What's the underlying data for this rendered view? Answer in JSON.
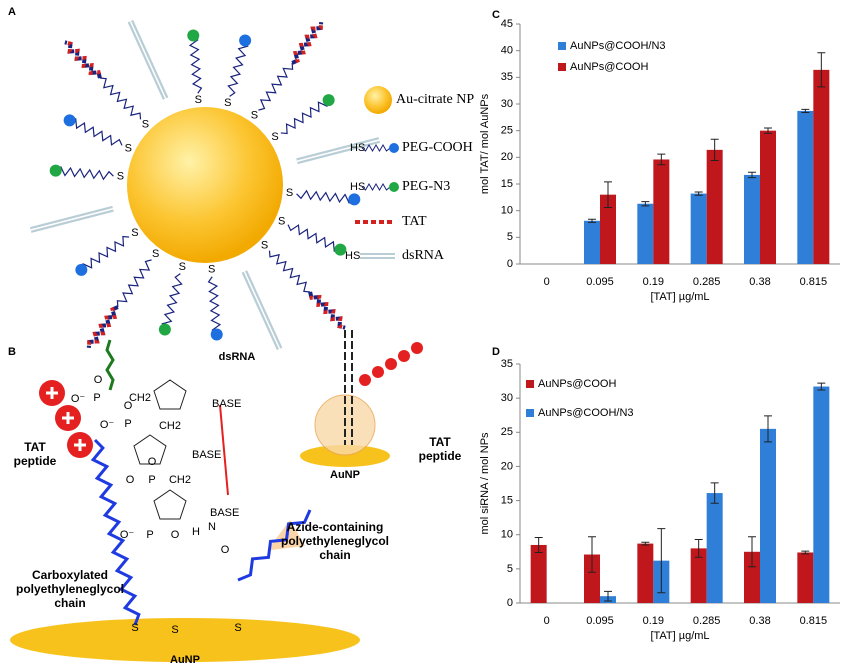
{
  "panel_labels": [
    "A",
    "B",
    "C",
    "D"
  ],
  "panel_a": {
    "legend": [
      "Au-citrate NP",
      "PEG-COOH",
      "PEG-N3",
      "TAT",
      "dsRNA"
    ],
    "hs": "HS",
    "thiol": "S"
  },
  "panel_b": {
    "dsrna": "dsRNA",
    "tat_left": "TAT peptide",
    "tat_right": "TAT peptide",
    "bases": [
      "BASE",
      "BASE",
      "BASE"
    ],
    "carboxylated": "Carboxylated polyethyleneglycol chain",
    "azide": "Azide-containing polyethyleneglycol chain",
    "aunp_bottom": "AuNP",
    "aunp_right": "AuNP",
    "chem": [
      "O⁻",
      "P",
      "O",
      "CH2",
      "O⁻",
      "P",
      "O",
      "CH2",
      "O",
      "P",
      "O",
      "CH2",
      "O⁻",
      "P",
      "O",
      "H",
      "N",
      "O",
      "S",
      "S",
      "S"
    ]
  },
  "chart_data": [
    {
      "type": "bar",
      "xlabel": "[TAT] µg/mL",
      "ylabel": "mol TAT/ mol AuNPs",
      "categories": [
        "0",
        "0.095",
        "0.19",
        "0.285",
        "0.38",
        "0.815"
      ],
      "ylim": [
        0,
        45
      ],
      "yticks": [
        0,
        5,
        10,
        15,
        20,
        25,
        30,
        35,
        40,
        45
      ],
      "series": [
        {
          "name": "AuNPs@COOH/N3",
          "color": "#2f7ed8",
          "values": [
            null,
            8.1,
            11.3,
            13.2,
            16.7,
            28.7
          ],
          "errors": [
            null,
            0.3,
            0.4,
            0.3,
            0.5,
            0.3
          ]
        },
        {
          "name": "AuNPs@COOH",
          "color": "#c0171d",
          "values": [
            null,
            13,
            19.6,
            21.4,
            25,
            36.4
          ],
          "errors": [
            null,
            2.4,
            1,
            2,
            0.5,
            3.2
          ]
        }
      ]
    },
    {
      "type": "bar",
      "xlabel": "[TAT] µg/mL",
      "ylabel": "mol siRNA / mol NPs",
      "categories": [
        "0",
        "0.095",
        "0.19",
        "0.285",
        "0.38",
        "0.815"
      ],
      "ylim": [
        0,
        35
      ],
      "yticks": [
        0,
        5,
        10,
        15,
        20,
        25,
        30,
        35
      ],
      "series": [
        {
          "name": "AuNPs@COOH",
          "color": "#c0171d",
          "values": [
            8.5,
            7.1,
            8.7,
            8.0,
            7.5,
            7.4
          ],
          "errors": [
            1.1,
            2.6,
            0.2,
            1.3,
            2.2,
            0.2
          ]
        },
        {
          "name": "AuNPs@COOH/N3",
          "color": "#2f7ed8",
          "values": [
            null,
            1.0,
            6.2,
            16.1,
            25.5,
            31.7
          ],
          "errors": [
            null,
            0.7,
            4.7,
            1.5,
            1.9,
            0.5
          ]
        }
      ]
    }
  ]
}
